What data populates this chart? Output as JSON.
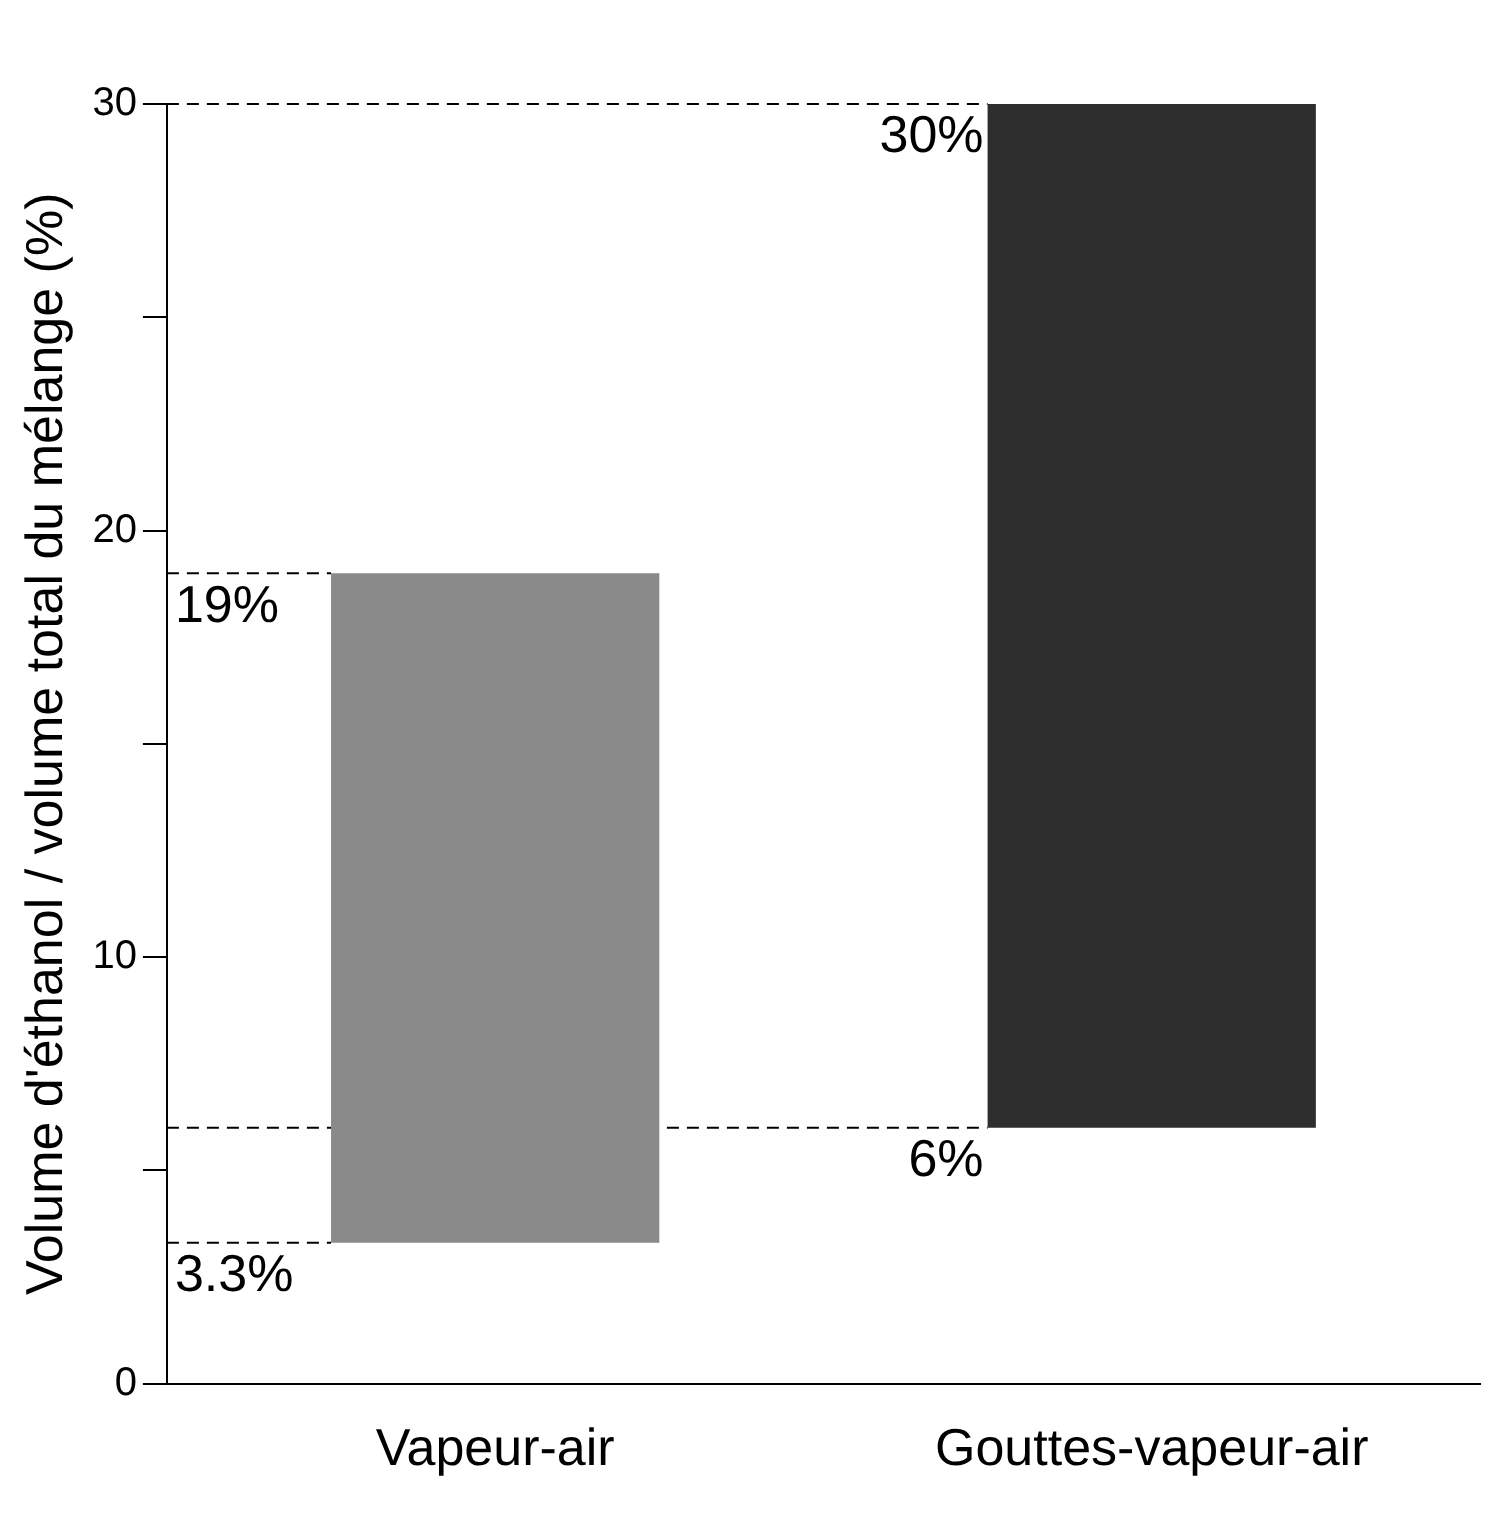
{
  "chart_data": {
    "type": "bar",
    "ylabel": "Volume d'éthanol / volume total du mélange (%)",
    "categories": [
      "Vapeur-air",
      "Gouttes-vapeur-air"
    ],
    "values": [
      15.7,
      24
    ],
    "base": [
      3.3,
      6
    ],
    "colors": [
      "#8a8a8a",
      "#2e2e2e"
    ],
    "ylim": [
      0,
      30
    ],
    "yticks": [
      0,
      {
        "value": 5,
        "label": null
      },
      10,
      {
        "value": 15,
        "label": null
      },
      20,
      {
        "value": 25,
        "label": null
      },
      30
    ],
    "grid": false,
    "legend": false,
    "ref_lines": [
      {
        "axis": "y",
        "value": 30,
        "label": "30%",
        "line_style": "dashed"
      },
      {
        "axis": "y",
        "value": 19,
        "label": "19%",
        "line_style": "dashed"
      },
      {
        "axis": "y",
        "value": 6,
        "label": "6%",
        "line_style": "dashed"
      },
      {
        "axis": "y",
        "value": 3.3,
        "label": "3.3%",
        "line_style": "dashed"
      }
    ]
  }
}
